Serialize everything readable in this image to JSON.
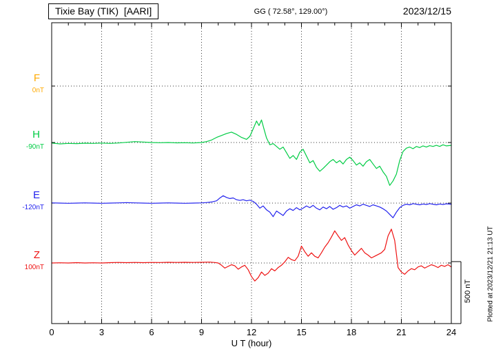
{
  "header": {
    "station_title": "Tixie Bay (TIK)  [AARI]",
    "coordinates": "GG ( 72.58°, 129.00°)",
    "date": "2023/12/15"
  },
  "side_note": "Plotted at 2023/12/21 21:13 UT",
  "scale_bar": {
    "label": "500 nT"
  },
  "chart_data": {
    "type": "line",
    "title": "Tixie Bay (TIK) [AARI] magnetogram 2023/12/15",
    "xlabel": "U T (hour)",
    "x_range": [
      0,
      24
    ],
    "x_tick_step": 3,
    "x_ticks": [
      "0",
      "3",
      "6",
      "9",
      "12",
      "15",
      "18",
      "21",
      "24"
    ],
    "grid": "dotted horizontal baselines and vertical 3-hour lines",
    "scale_bar_nT": 500,
    "series": [
      {
        "name": "F",
        "color": "#ffaa00",
        "baseline_label": "0nT",
        "points": []
      },
      {
        "name": "H",
        "color": "#00cc44",
        "baseline_label": "-90nT",
        "points": [
          [
            0,
            -5
          ],
          [
            0.5,
            -12
          ],
          [
            1,
            -8
          ],
          [
            1.5,
            -10
          ],
          [
            2,
            -6
          ],
          [
            2.5,
            -8
          ],
          [
            3,
            -5
          ],
          [
            3.5,
            -8
          ],
          [
            4,
            -4
          ],
          [
            4.5,
            2
          ],
          [
            5,
            8
          ],
          [
            5.5,
            4
          ],
          [
            6,
            0
          ],
          [
            6.5,
            -2
          ],
          [
            7,
            0
          ],
          [
            7.5,
            -3
          ],
          [
            8,
            -2
          ],
          [
            8.5,
            -4
          ],
          [
            9,
            0
          ],
          [
            9.3,
            8
          ],
          [
            9.6,
            22
          ],
          [
            9.9,
            45
          ],
          [
            10.2,
            62
          ],
          [
            10.5,
            80
          ],
          [
            10.8,
            92
          ],
          [
            11.1,
            72
          ],
          [
            11.4,
            45
          ],
          [
            11.7,
            28
          ],
          [
            11.9,
            55
          ],
          [
            12.1,
            120
          ],
          [
            12.3,
            190
          ],
          [
            12.45,
            150
          ],
          [
            12.6,
            200
          ],
          [
            12.75,
            120
          ],
          [
            12.9,
            40
          ],
          [
            13.1,
            -20
          ],
          [
            13.3,
            -10
          ],
          [
            13.5,
            -35
          ],
          [
            13.7,
            -60
          ],
          [
            13.9,
            -40
          ],
          [
            14.1,
            -90
          ],
          [
            14.3,
            -140
          ],
          [
            14.5,
            -115
          ],
          [
            14.7,
            -150
          ],
          [
            14.9,
            -85
          ],
          [
            15.1,
            -60
          ],
          [
            15.3,
            -120
          ],
          [
            15.5,
            -180
          ],
          [
            15.7,
            -160
          ],
          [
            15.9,
            -220
          ],
          [
            16.1,
            -255
          ],
          [
            16.3,
            -230
          ],
          [
            16.5,
            -200
          ],
          [
            16.7,
            -170
          ],
          [
            16.9,
            -150
          ],
          [
            17.1,
            -180
          ],
          [
            17.3,
            -160
          ],
          [
            17.5,
            -190
          ],
          [
            17.7,
            -150
          ],
          [
            17.9,
            -130
          ],
          [
            18.1,
            -160
          ],
          [
            18.3,
            -200
          ],
          [
            18.5,
            -180
          ],
          [
            18.7,
            -210
          ],
          [
            18.9,
            -170
          ],
          [
            19.1,
            -150
          ],
          [
            19.3,
            -190
          ],
          [
            19.5,
            -230
          ],
          [
            19.7,
            -210
          ],
          [
            19.9,
            -260
          ],
          [
            20.1,
            -300
          ],
          [
            20.3,
            -380
          ],
          [
            20.5,
            -340
          ],
          [
            20.7,
            -280
          ],
          [
            20.9,
            -160
          ],
          [
            21.1,
            -80
          ],
          [
            21.3,
            -50
          ],
          [
            21.5,
            -40
          ],
          [
            21.7,
            -55
          ],
          [
            21.9,
            -35
          ],
          [
            22.1,
            -45
          ],
          [
            22.3,
            -30
          ],
          [
            22.5,
            -40
          ],
          [
            22.7,
            -28
          ],
          [
            22.9,
            -35
          ],
          [
            23.1,
            -25
          ],
          [
            23.3,
            -35
          ],
          [
            23.5,
            -20
          ],
          [
            23.7,
            -30
          ],
          [
            24,
            -25
          ]
        ]
      },
      {
        "name": "E",
        "color": "#2222ee",
        "baseline_label": "-120nT",
        "points": [
          [
            0,
            2
          ],
          [
            0.5,
            0
          ],
          [
            1,
            -2
          ],
          [
            1.5,
            0
          ],
          [
            2,
            2
          ],
          [
            2.5,
            0
          ],
          [
            3,
            -2
          ],
          [
            3.5,
            0
          ],
          [
            4,
            2
          ],
          [
            4.5,
            4
          ],
          [
            5,
            2
          ],
          [
            5.5,
            0
          ],
          [
            6,
            -2
          ],
          [
            6.5,
            0
          ],
          [
            7,
            2
          ],
          [
            7.5,
            0
          ],
          [
            8,
            -2
          ],
          [
            8.5,
            0
          ],
          [
            9,
            2
          ],
          [
            9.3,
            5
          ],
          [
            9.6,
            10
          ],
          [
            9.9,
            20
          ],
          [
            10.1,
            45
          ],
          [
            10.3,
            65
          ],
          [
            10.5,
            50
          ],
          [
            10.7,
            40
          ],
          [
            10.9,
            46
          ],
          [
            11.1,
            30
          ],
          [
            11.3,
            24
          ],
          [
            11.5,
            30
          ],
          [
            11.7,
            20
          ],
          [
            11.9,
            26
          ],
          [
            12.1,
            15
          ],
          [
            12.3,
            -10
          ],
          [
            12.5,
            -45
          ],
          [
            12.7,
            -25
          ],
          [
            12.9,
            -60
          ],
          [
            13.1,
            -80
          ],
          [
            13.3,
            -120
          ],
          [
            13.5,
            -70
          ],
          [
            13.7,
            -90
          ],
          [
            13.9,
            -110
          ],
          [
            14.1,
            -70
          ],
          [
            14.3,
            -50
          ],
          [
            14.5,
            -65
          ],
          [
            14.7,
            -40
          ],
          [
            14.9,
            -60
          ],
          [
            15.1,
            -45
          ],
          [
            15.3,
            -25
          ],
          [
            15.5,
            -40
          ],
          [
            15.7,
            -20
          ],
          [
            15.9,
            -45
          ],
          [
            16.1,
            -60
          ],
          [
            16.3,
            -35
          ],
          [
            16.5,
            -50
          ],
          [
            16.7,
            -30
          ],
          [
            16.9,
            -55
          ],
          [
            17.1,
            -40
          ],
          [
            17.3,
            -20
          ],
          [
            17.5,
            -35
          ],
          [
            17.7,
            -25
          ],
          [
            17.9,
            -45
          ],
          [
            18.1,
            -30
          ],
          [
            18.3,
            -15
          ],
          [
            18.5,
            -25
          ],
          [
            18.7,
            -10
          ],
          [
            18.9,
            -20
          ],
          [
            19.1,
            -30
          ],
          [
            19.3,
            -15
          ],
          [
            19.5,
            -25
          ],
          [
            19.7,
            -35
          ],
          [
            19.9,
            -50
          ],
          [
            20.1,
            -70
          ],
          [
            20.3,
            -100
          ],
          [
            20.5,
            -130
          ],
          [
            20.7,
            -80
          ],
          [
            20.9,
            -40
          ],
          [
            21.1,
            -20
          ],
          [
            21.3,
            -10
          ],
          [
            21.5,
            -15
          ],
          [
            21.7,
            -5
          ],
          [
            21.9,
            -10
          ],
          [
            22.1,
            -15
          ],
          [
            22.3,
            -8
          ],
          [
            22.5,
            -12
          ],
          [
            22.7,
            -5
          ],
          [
            22.9,
            -10
          ],
          [
            23.1,
            -15
          ],
          [
            23.3,
            -8
          ],
          [
            23.5,
            -12
          ],
          [
            23.7,
            -6
          ],
          [
            24,
            -10
          ]
        ]
      },
      {
        "name": "Z",
        "color": "#ee1111",
        "baseline_label": "100nT",
        "points": [
          [
            0,
            0
          ],
          [
            0.5,
            2
          ],
          [
            1,
            0
          ],
          [
            1.5,
            3
          ],
          [
            2,
            0
          ],
          [
            2.5,
            2
          ],
          [
            3,
            0
          ],
          [
            3.5,
            3
          ],
          [
            4,
            5
          ],
          [
            4.5,
            3
          ],
          [
            5,
            5
          ],
          [
            5.5,
            3
          ],
          [
            6,
            5
          ],
          [
            6.5,
            4
          ],
          [
            7,
            6
          ],
          [
            7.5,
            5
          ],
          [
            8,
            6
          ],
          [
            8.5,
            5
          ],
          [
            9,
            6
          ],
          [
            9.5,
            8
          ],
          [
            9.8,
            4
          ],
          [
            10,
            0
          ],
          [
            10.2,
            -20
          ],
          [
            10.4,
            -45
          ],
          [
            10.6,
            -30
          ],
          [
            10.8,
            -15
          ],
          [
            11,
            -25
          ],
          [
            11.2,
            -55
          ],
          [
            11.4,
            -35
          ],
          [
            11.6,
            -20
          ],
          [
            11.8,
            -60
          ],
          [
            12,
            -120
          ],
          [
            12.2,
            -160
          ],
          [
            12.4,
            -130
          ],
          [
            12.6,
            -80
          ],
          [
            12.8,
            -110
          ],
          [
            13,
            -90
          ],
          [
            13.2,
            -50
          ],
          [
            13.4,
            -70
          ],
          [
            13.6,
            -40
          ],
          [
            13.8,
            -20
          ],
          [
            14,
            10
          ],
          [
            14.2,
            50
          ],
          [
            14.4,
            30
          ],
          [
            14.6,
            20
          ],
          [
            14.8,
            60
          ],
          [
            15,
            150
          ],
          [
            15.2,
            100
          ],
          [
            15.4,
            60
          ],
          [
            15.6,
            90
          ],
          [
            15.8,
            60
          ],
          [
            16,
            45
          ],
          [
            16.2,
            90
          ],
          [
            16.4,
            140
          ],
          [
            16.6,
            180
          ],
          [
            16.8,
            230
          ],
          [
            17,
            285
          ],
          [
            17.2,
            240
          ],
          [
            17.4,
            200
          ],
          [
            17.6,
            225
          ],
          [
            17.8,
            160
          ],
          [
            18,
            110
          ],
          [
            18.2,
            70
          ],
          [
            18.4,
            100
          ],
          [
            18.6,
            130
          ],
          [
            18.8,
            90
          ],
          [
            19,
            70
          ],
          [
            19.2,
            45
          ],
          [
            19.4,
            60
          ],
          [
            19.6,
            75
          ],
          [
            19.8,
            90
          ],
          [
            20,
            120
          ],
          [
            20.2,
            240
          ],
          [
            20.4,
            300
          ],
          [
            20.5,
            250
          ],
          [
            20.6,
            200
          ],
          [
            20.7,
            80
          ],
          [
            20.8,
            -40
          ],
          [
            21,
            -80
          ],
          [
            21.2,
            -100
          ],
          [
            21.4,
            -70
          ],
          [
            21.6,
            -50
          ],
          [
            21.8,
            -60
          ],
          [
            22,
            -35
          ],
          [
            22.2,
            -25
          ],
          [
            22.4,
            -45
          ],
          [
            22.6,
            -30
          ],
          [
            22.8,
            -15
          ],
          [
            23,
            -25
          ],
          [
            23.2,
            -40
          ],
          [
            23.4,
            -20
          ],
          [
            23.6,
            -30
          ],
          [
            23.8,
            -15
          ],
          [
            24,
            -35
          ]
        ]
      }
    ]
  }
}
